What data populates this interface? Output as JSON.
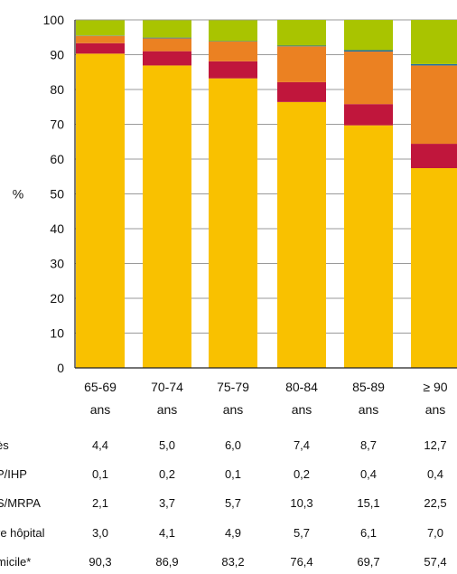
{
  "colors": {
    "domicile": "#F9C100",
    "autre_hopital": "#C0163C",
    "ehpad": "#EB8122",
    "usld": "#1F6FA8",
    "deces": "#A9C400",
    "axis": "#222222",
    "grid": "#9a9a9a"
  },
  "chart_data": {
    "type": "bar",
    "stacked": true,
    "ylabel": "%",
    "ylim": [
      0,
      100
    ],
    "yticks": [
      0,
      10,
      20,
      30,
      40,
      50,
      60,
      70,
      80,
      90,
      100
    ],
    "grid": true,
    "categories": [
      [
        "65-69",
        "ans"
      ],
      [
        "70-74",
        "ans"
      ],
      [
        "75-79",
        "ans"
      ],
      [
        "80-84",
        "ans"
      ],
      [
        "85-89",
        "ans"
      ],
      [
        "≥ 90",
        "ans"
      ]
    ],
    "series": [
      {
        "key": "domicile",
        "name": "micile*",
        "values": [
          "90,3",
          "86,9",
          "83,2",
          "76,4",
          "69,7",
          "57,4"
        ]
      },
      {
        "key": "autre_hopital",
        "name": "re hôpital",
        "values": [
          "3,0",
          "4,1",
          "4,9",
          "5,7",
          "6,1",
          "7,0"
        ]
      },
      {
        "key": "ehpad",
        "name": "S/MRPA",
        "values": [
          "2,1",
          "3,7",
          "5,7",
          "10,3",
          "15,1",
          "22,5"
        ]
      },
      {
        "key": "usld",
        "name": "P/IHP",
        "values": [
          "0,1",
          "0,2",
          "0,1",
          "0,2",
          "0,4",
          "0,4"
        ]
      },
      {
        "key": "deces",
        "name": "ès",
        "values": [
          "4,4",
          "5,0",
          "6,0",
          "7,4",
          "8,7",
          "12,7"
        ]
      }
    ],
    "table_order": [
      "deces",
      "usld",
      "ehpad",
      "autre_hopital",
      "domicile"
    ]
  }
}
